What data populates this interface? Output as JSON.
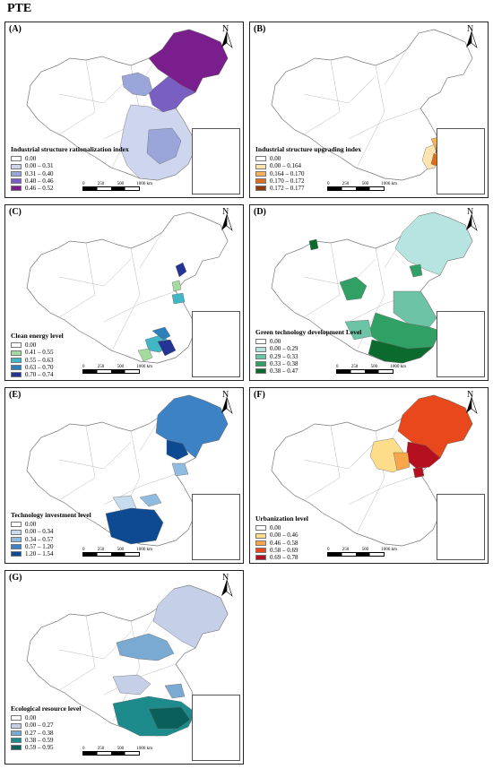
{
  "title": "PTE",
  "north_label": "N",
  "scale_labels": [
    "0",
    "250",
    "500",
    "1000 km"
  ],
  "panels": [
    {
      "id": "A",
      "label": "(A)",
      "legend_title": "Industrial structure rationalization index",
      "classes": [
        {
          "label": "0.00",
          "color": "#ffffff"
        },
        {
          "label": "0.00 – 0.31",
          "color": "#cdd6ee"
        },
        {
          "label": "0.31 – 0.40",
          "color": "#9aa6da"
        },
        {
          "label": "0.40 – 0.46",
          "color": "#7a5fc2"
        },
        {
          "label": "0.46 – 0.52",
          "color": "#7a1e8e"
        }
      ]
    },
    {
      "id": "B",
      "label": "(B)",
      "legend_title": "Industrial structure upgrading index",
      "classes": [
        {
          "label": "0.00",
          "color": "#ffffff"
        },
        {
          "label": "0.00 – 0.164",
          "color": "#fde3b0"
        },
        {
          "label": "0.164 – 0.170",
          "color": "#f6b25a"
        },
        {
          "label": "0.170 – 0.172",
          "color": "#d96f1e"
        },
        {
          "label": "0.172 – 0.177",
          "color": "#8e3a0c"
        }
      ]
    },
    {
      "id": "C",
      "label": "(C)",
      "legend_title": "Clean energy level",
      "classes": [
        {
          "label": "0.00",
          "color": "#ffffff"
        },
        {
          "label": "0.41 – 0.55",
          "color": "#a6dba0"
        },
        {
          "label": "0.55 – 0.63",
          "color": "#41b6c4"
        },
        {
          "label": "0.63 – 0.70",
          "color": "#2c7fb8"
        },
        {
          "label": "0.70 – 0.74",
          "color": "#253494"
        }
      ]
    },
    {
      "id": "D",
      "label": "(D)",
      "legend_title": "Green technology development Level",
      "classes": [
        {
          "label": "0.00",
          "color": "#ffffff"
        },
        {
          "label": "0.00 – 0.29",
          "color": "#b7e4e0"
        },
        {
          "label": "0.29 – 0.33",
          "color": "#6cc3a5"
        },
        {
          "label": "0.33 – 0.38",
          "color": "#31a065"
        },
        {
          "label": "0.38 – 0.47",
          "color": "#0b6b2e"
        }
      ]
    },
    {
      "id": "E",
      "label": "(E)",
      "legend_title": "Technology investment level",
      "classes": [
        {
          "label": "0.00",
          "color": "#ffffff"
        },
        {
          "label": "0.00 – 0.34",
          "color": "#c8dcef"
        },
        {
          "label": "0.34 – 0.57",
          "color": "#8fbbe0"
        },
        {
          "label": "0.57 – 1.20",
          "color": "#3d82c4"
        },
        {
          "label": "1.20 – 1.54",
          "color": "#0d4a92"
        }
      ]
    },
    {
      "id": "F",
      "label": "(F)",
      "legend_title": "Urbanization level",
      "classes": [
        {
          "label": "0.00",
          "color": "#ffffff"
        },
        {
          "label": "0.00 – 0.46",
          "color": "#fddc8a"
        },
        {
          "label": "0.46 – 0.58",
          "color": "#f7a64a"
        },
        {
          "label": "0.58 – 0.69",
          "color": "#e8481c"
        },
        {
          "label": "0.69 – 0.78",
          "color": "#b5101f"
        }
      ]
    },
    {
      "id": "G",
      "label": "(G)",
      "legend_title": "Ecological resource level",
      "classes": [
        {
          "label": "0.00",
          "color": "#ffffff"
        },
        {
          "label": "0.00 – 0.27",
          "color": "#c6cfe8"
        },
        {
          "label": "0.27 – 0.38",
          "color": "#7aa9d1"
        },
        {
          "label": "0.38 – 0.59",
          "color": "#1d8b8b"
        },
        {
          "label": "0.59 – 0.95",
          "color": "#0a5f5a"
        }
      ]
    }
  ]
}
